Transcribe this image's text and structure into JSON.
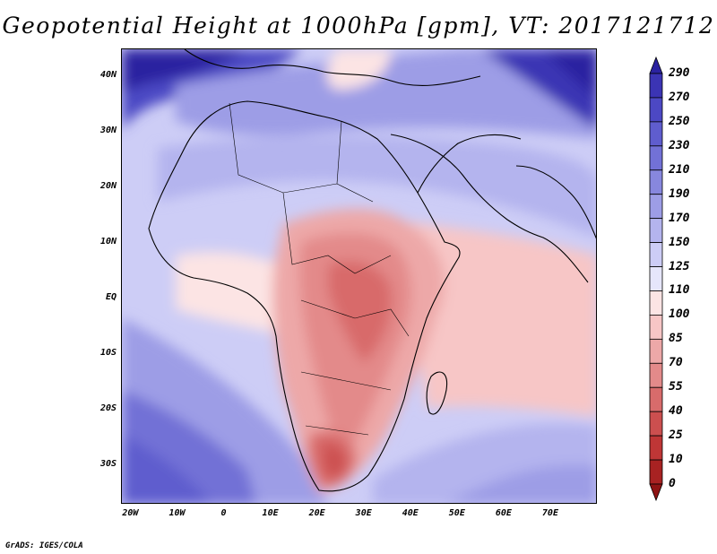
{
  "title": "Geopotential Height at 1000hPa [gpm], VT: 2017121712",
  "map": {
    "region": "Africa and surrounding ocean",
    "lat_range": [
      -37,
      45
    ],
    "lon_range": [
      -22,
      80
    ],
    "lat_labels": [
      "40N",
      "30N",
      "20N",
      "10N",
      "EQ",
      "10S",
      "20S",
      "30S"
    ],
    "lat_values": [
      40,
      30,
      20,
      10,
      0,
      -10,
      -20,
      -30
    ],
    "lon_labels": [
      "20W",
      "10W",
      "0",
      "10E",
      "20E",
      "30E",
      "40E",
      "50E",
      "60E",
      "70E"
    ],
    "lon_values": [
      -20,
      -10,
      0,
      10,
      20,
      30,
      40,
      50,
      60,
      70
    ]
  },
  "colorbar": {
    "levels": [
      "290",
      "270",
      "250",
      "230",
      "210",
      "190",
      "170",
      "150",
      "125",
      "110",
      "100",
      "85",
      "70",
      "55",
      "40",
      "25",
      "10",
      "0"
    ],
    "colors": [
      "#2b22a0",
      "#3b34b4",
      "#4c48c4",
      "#5f5dce",
      "#7271d6",
      "#8787de",
      "#9d9de6",
      "#b4b4ee",
      "#cdcdf6",
      "#e6e6fb",
      "#fce4e4",
      "#f7c6c6",
      "#eda8a8",
      "#e38a8a",
      "#d86b6b",
      "#cc4f4f",
      "#bf3636",
      "#a82222",
      "#8e1414"
    ]
  },
  "credit": "GrADS: IGES/COLA"
}
